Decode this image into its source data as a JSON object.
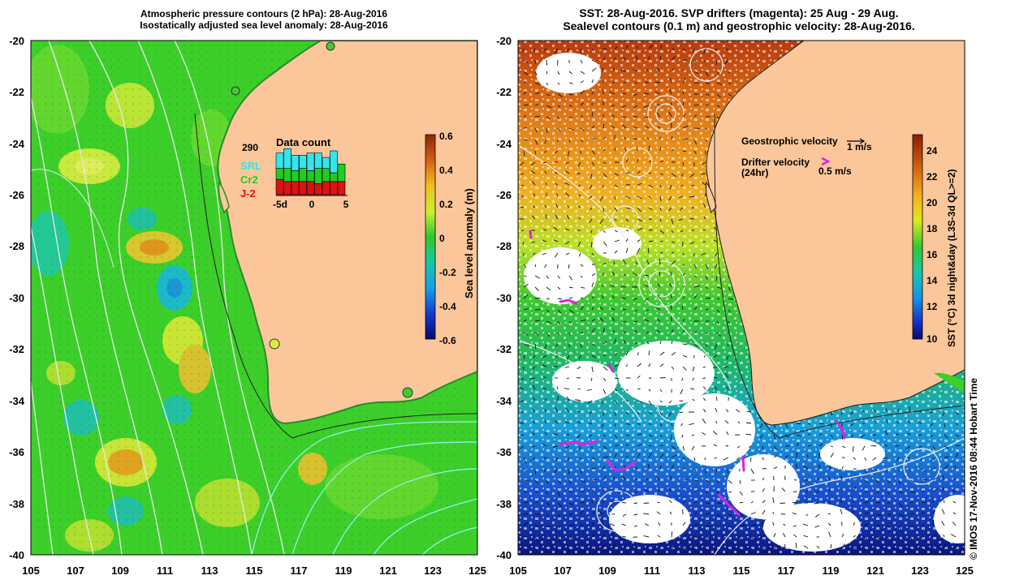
{
  "left_panel": {
    "title_line1": "Atmospheric pressure contours (2 hPa): 28-Aug-2016",
    "title_line2": "Isostatically adjusted sea level anomaly: 28-Aug-2016",
    "y_ticks": [
      "-20",
      "-22",
      "-24",
      "-26",
      "-28",
      "-30",
      "-32",
      "-34",
      "-36",
      "-38",
      "-40"
    ],
    "x_ticks": [
      "105",
      "107",
      "109",
      "111",
      "113",
      "115",
      "117",
      "119",
      "121",
      "123",
      "125"
    ],
    "colorbar": {
      "label": "Sea level anomaly (m)",
      "ticks": [
        "0.6",
        "0.4",
        "0.2",
        "0",
        "-0.2",
        "-0.4",
        "-0.6"
      ]
    },
    "data_count": {
      "title": "Data count",
      "max_label": "290",
      "legend": [
        "SRL",
        "Cr2",
        "J-2"
      ],
      "legend_colors": [
        "#33e5ee",
        "#22cc22",
        "#dd1111"
      ],
      "x_ticks": [
        "-5d",
        "0",
        "5"
      ],
      "bars": [
        {
          "srl": 0.35,
          "cr2": 0.25,
          "j2": 0.35
        },
        {
          "srl": 0.45,
          "cr2": 0.3,
          "j2": 0.3
        },
        {
          "srl": 0.35,
          "cr2": 0.25,
          "j2": 0.3
        },
        {
          "srl": 0.3,
          "cr2": 0.3,
          "j2": 0.3
        },
        {
          "srl": 0.4,
          "cr2": 0.25,
          "j2": 0.3
        },
        {
          "srl": 0.35,
          "cr2": 0.35,
          "j2": 0.25
        },
        {
          "srl": 0.25,
          "cr2": 0.3,
          "j2": 0.3
        },
        {
          "srl": 0.5,
          "cr2": 0.2,
          "j2": 0.3
        },
        {
          "srl": 0.0,
          "cr2": 0.4,
          "j2": 0.3
        }
      ]
    }
  },
  "right_panel": {
    "title_line1": "SST: 28-Aug-2016. SVP drifters (magenta): 25 Aug - 29 Aug.",
    "title_line2": "Sealevel contours (0.1 m) and geostrophic velocity: 28-Aug-2016.",
    "y_ticks": [
      "-20",
      "-22",
      "-24",
      "-26",
      "-28",
      "-30",
      "-32",
      "-34",
      "-36",
      "-38",
      "-40"
    ],
    "x_ticks": [
      "105",
      "107",
      "109",
      "111",
      "113",
      "115",
      "117",
      "119",
      "121",
      "123",
      "125"
    ],
    "geostrophic_label": "Geostrophic velocity",
    "geostrophic_scale": "1 m/s",
    "drifter_label": "Drifter velocity",
    "drifter_sub": "(24hr)",
    "drifter_scale": "0.5 m/s",
    "colorbar": {
      "label": "SST (°C) 3d night&day (L3S-3d QL>=2)",
      "ticks": [
        "24",
        "22",
        "20",
        "18",
        "16",
        "14",
        "12",
        "10"
      ]
    }
  },
  "copyright": "© IMOS 17-Nov-2016 08:44 Hobart Time",
  "colors": {
    "land": "#fbc79a",
    "ocean_green": "#3ccf2a",
    "magenta": "#e020e0"
  }
}
